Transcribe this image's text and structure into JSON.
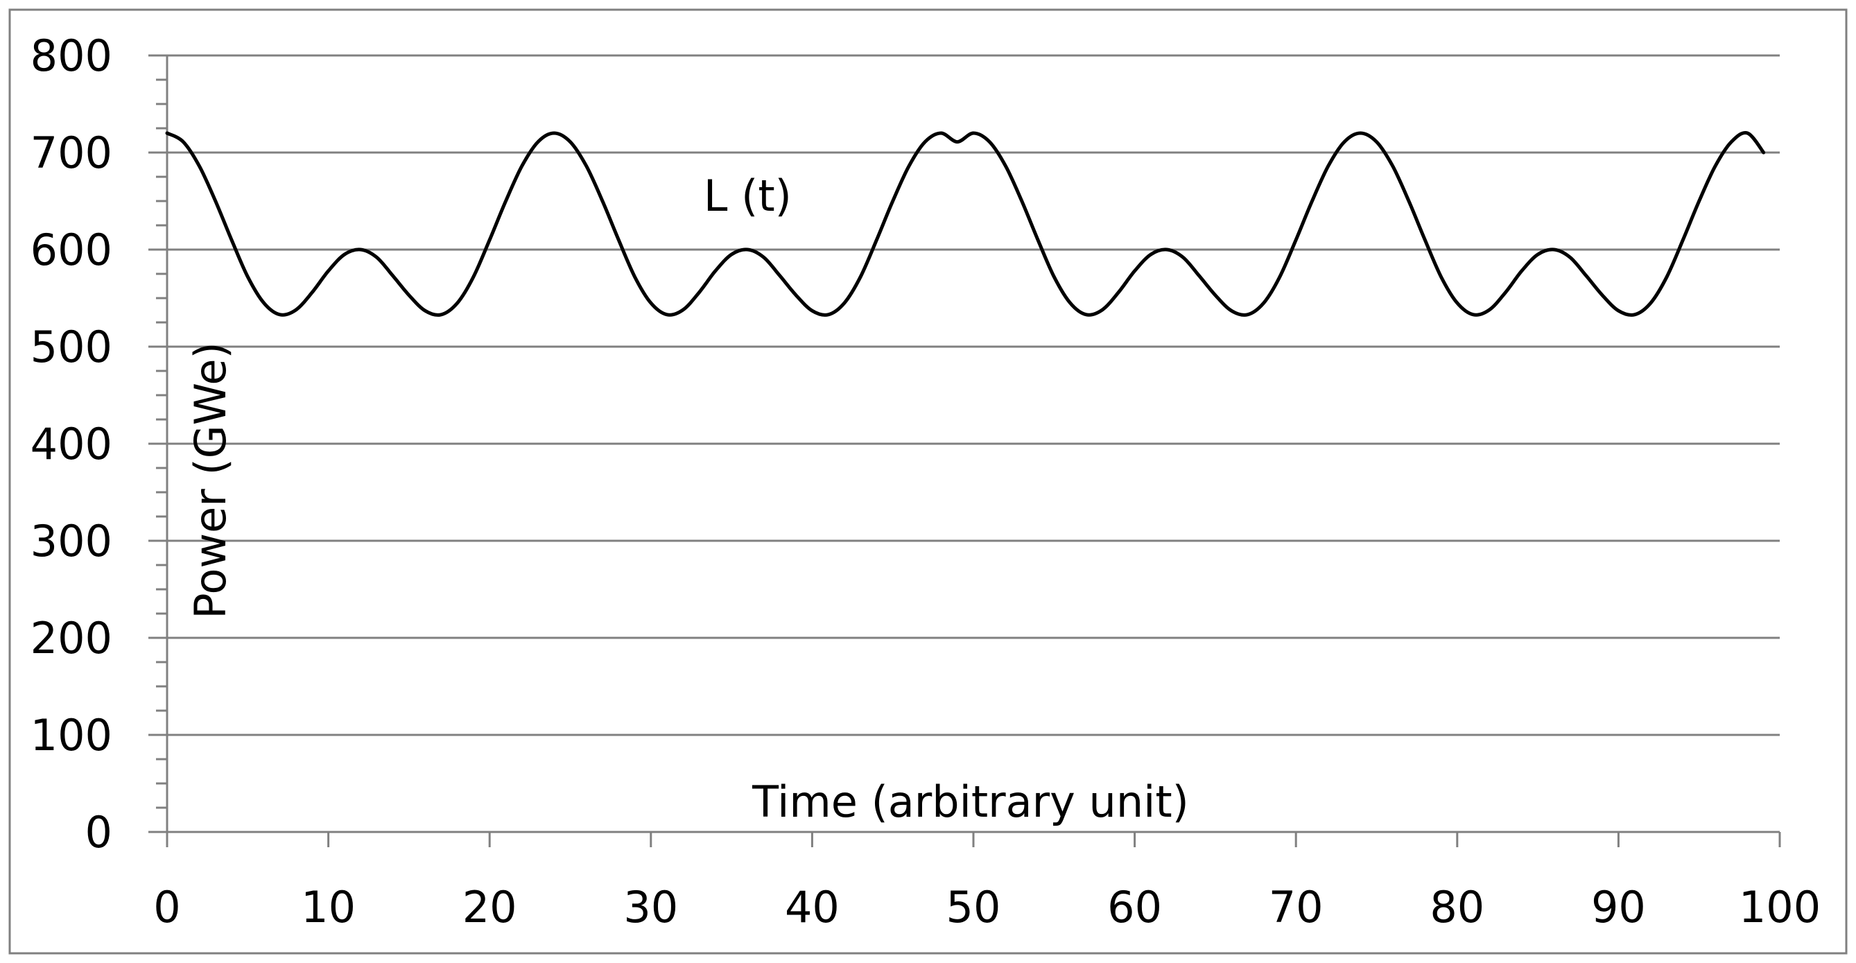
{
  "chart_data": {
    "type": "line",
    "title": "",
    "xlabel": "Time (arbitrary unit)",
    "ylabel": "Power (GWe)",
    "xlim": [
      0,
      100
    ],
    "ylim": [
      0,
      800
    ],
    "x_ticks": [
      0,
      10,
      20,
      30,
      40,
      50,
      60,
      70,
      80,
      90,
      100
    ],
    "y_ticks": [
      0,
      100,
      200,
      300,
      400,
      500,
      600,
      700,
      800
    ],
    "y_minor_step": 25,
    "grid": "horizontal-major",
    "legend": "none",
    "colors": {
      "line": "#000000",
      "grid": "#808080",
      "axis": "#808080",
      "frame": "#808080"
    },
    "series": [
      {
        "name": "L (t)",
        "x": [
          0,
          1,
          2,
          3,
          4,
          5,
          6,
          7,
          8,
          9,
          10,
          11,
          12,
          13,
          14,
          15,
          16,
          17,
          18,
          19,
          20,
          21,
          22,
          23,
          24,
          25,
          26,
          27,
          28,
          29,
          30,
          31,
          32,
          33,
          34,
          35,
          36,
          37,
          38,
          39,
          40,
          41,
          42,
          43,
          44,
          45,
          46,
          47,
          48,
          49,
          50,
          51,
          52,
          53,
          54,
          55,
          56,
          57,
          58,
          59,
          60,
          61,
          62,
          63,
          64,
          65,
          66,
          67,
          68,
          69,
          70,
          71,
          72,
          73,
          74,
          75,
          76,
          77,
          78,
          79,
          80,
          81,
          82,
          83,
          84,
          85,
          86,
          87,
          88,
          89,
          90,
          91,
          92,
          93,
          94,
          95,
          96,
          97,
          98,
          99
        ],
        "values": [
          720,
          711,
          686,
          650,
          610,
          572,
          545,
          533,
          538,
          556,
          578,
          595,
          600,
          592,
          573,
          553,
          537,
          533,
          545,
          572,
          610,
          650,
          686,
          711,
          720,
          711,
          686,
          650,
          610,
          572,
          545,
          533,
          538,
          556,
          578,
          595,
          600,
          592,
          573,
          553,
          537,
          533,
          545,
          572,
          610,
          650,
          686,
          711,
          720,
          711,
          720,
          711,
          686,
          650,
          610,
          572,
          545,
          533,
          538,
          556,
          578,
          595,
          600,
          592,
          573,
          553,
          537,
          533,
          545,
          572,
          610,
          650,
          686,
          711,
          720,
          711,
          686,
          650,
          610,
          572,
          545,
          533,
          538,
          556,
          578,
          595,
          600,
          592,
          573,
          553,
          537,
          533,
          545,
          572,
          610,
          650,
          686,
          711,
          720,
          700
        ]
      }
    ],
    "annotations": [
      {
        "text": "L (t)",
        "x": 36,
        "y": 640
      }
    ]
  }
}
